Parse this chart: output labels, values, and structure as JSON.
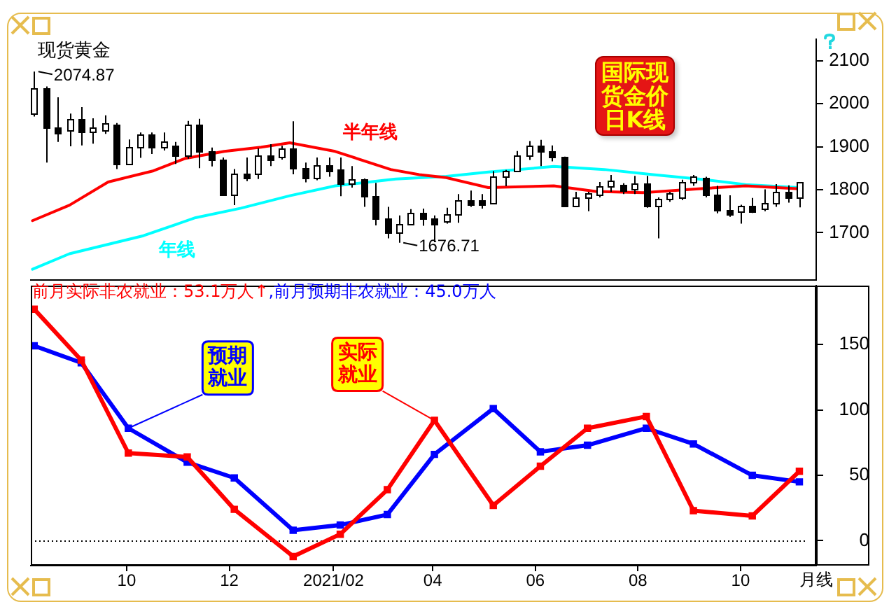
{
  "chart_data": [
    {
      "type": "candlestick",
      "title": "国际现货金价日K线",
      "subtitle": "现货黄金",
      "x": [
        "2020-08-07",
        "2020-08-14",
        "2020-08-21",
        "2020-08-28",
        "2020-09-04",
        "2020-09-11",
        "2020-09-18",
        "2020-09-25",
        "2020-10-02",
        "2020-10-09",
        "2020-10-16",
        "2020-10-23",
        "2020-10-30",
        "2020-11-06",
        "2020-11-13",
        "2020-11-20",
        "2020-11-27",
        "2020-12-04",
        "2020-12-11",
        "2020-12-18",
        "2020-12-25",
        "2021-01-01",
        "2021-01-08",
        "2021-01-15",
        "2021-01-22",
        "2021-01-29",
        "2021-02-05",
        "2021-02-12",
        "2021-02-19",
        "2021-02-26",
        "2021-03-05",
        "2021-03-12",
        "2021-03-19",
        "2021-03-26",
        "2021-04-02",
        "2021-04-09",
        "2021-04-16",
        "2021-04-23",
        "2021-04-30",
        "2021-05-07",
        "2021-05-14",
        "2021-05-21",
        "2021-05-28",
        "2021-06-04",
        "2021-06-11",
        "2021-06-18",
        "2021-06-25",
        "2021-07-02",
        "2021-07-09",
        "2021-07-16",
        "2021-07-23",
        "2021-07-30",
        "2021-08-06",
        "2021-08-13",
        "2021-08-20",
        "2021-08-27",
        "2021-09-03",
        "2021-09-10",
        "2021-09-17",
        "2021-09-24",
        "2021-10-01",
        "2021-10-08",
        "2021-10-15",
        "2021-10-22",
        "2021-10-29",
        "2021-11-05"
      ],
      "ohlc": [
        [
          1976,
          2074.87,
          1970,
          2035
        ],
        [
          2035,
          2040,
          1863,
          1944
        ],
        [
          1944,
          2015,
          1911,
          1932
        ],
        [
          1940,
          1977,
          1901,
          1964
        ],
        [
          1964,
          1992,
          1903,
          1934
        ],
        [
          1934,
          1966,
          1907,
          1946
        ],
        [
          1940,
          1973,
          1930,
          1954
        ],
        [
          1950,
          1955,
          1848,
          1861
        ],
        [
          1861,
          1917,
          1860,
          1899
        ],
        [
          1899,
          1933,
          1874,
          1930
        ],
        [
          1930,
          1933,
          1883,
          1899
        ],
        [
          1899,
          1933,
          1891,
          1911
        ],
        [
          1902,
          1911,
          1860,
          1879
        ],
        [
          1879,
          1960,
          1872,
          1951
        ],
        [
          1951,
          1965,
          1850,
          1889
        ],
        [
          1889,
          1898,
          1854,
          1871
        ],
        [
          1871,
          1875,
          1787,
          1788
        ],
        [
          1788,
          1848,
          1764,
          1839
        ],
        [
          1839,
          1875,
          1820,
          1827
        ],
        [
          1839,
          1896,
          1825,
          1881
        ],
        [
          1881,
          1906,
          1855,
          1869
        ],
        [
          1877,
          1902,
          1870,
          1895
        ],
        [
          1895,
          1959,
          1836,
          1850
        ],
        [
          1850,
          1863,
          1817,
          1828
        ],
        [
          1828,
          1875,
          1822,
          1856
        ],
        [
          1856,
          1875,
          1830,
          1844
        ],
        [
          1848,
          1875,
          1785,
          1814
        ],
        [
          1814,
          1855,
          1805,
          1826
        ],
        [
          1823,
          1826,
          1760,
          1784
        ],
        [
          1784,
          1816,
          1717,
          1734
        ],
        [
          1734,
          1760,
          1687,
          1700
        ],
        [
          1700,
          1740,
          1676.71,
          1720
        ],
        [
          1720,
          1755,
          1718,
          1745
        ],
        [
          1745,
          1756,
          1716,
          1732
        ],
        [
          1732,
          1740,
          1678,
          1720
        ],
        [
          1728,
          1758,
          1721,
          1744
        ],
        [
          1744,
          1790,
          1723,
          1777
        ],
        [
          1777,
          1798,
          1760,
          1766
        ],
        [
          1777,
          1790,
          1756,
          1765
        ],
        [
          1769,
          1843,
          1768,
          1831
        ],
        [
          1831,
          1846,
          1808,
          1844
        ],
        [
          1844,
          1890,
          1843,
          1881
        ],
        [
          1881,
          1913,
          1869,
          1903
        ],
        [
          1903,
          1916,
          1855,
          1891
        ],
        [
          1891,
          1903,
          1866,
          1877
        ],
        [
          1877,
          1877,
          1761,
          1764
        ],
        [
          1764,
          1795,
          1762,
          1781
        ],
        [
          1781,
          1795,
          1750,
          1792
        ],
        [
          1787,
          1818,
          1782,
          1808
        ],
        [
          1808,
          1834,
          1795,
          1820
        ],
        [
          1812,
          1815,
          1790,
          1800
        ],
        [
          1802,
          1832,
          1790,
          1814
        ],
        [
          1814,
          1832,
          1758,
          1763
        ],
        [
          1763,
          1782,
          1687,
          1780
        ],
        [
          1780,
          1795,
          1772,
          1792
        ],
        [
          1781,
          1823,
          1776,
          1818
        ],
        [
          1818,
          1834,
          1809,
          1831
        ],
        [
          1828,
          1830,
          1782,
          1787
        ],
        [
          1787,
          1809,
          1745,
          1754
        ],
        [
          1754,
          1787,
          1737,
          1742
        ],
        [
          1750,
          1765,
          1721,
          1761
        ],
        [
          1761,
          1781,
          1746,
          1749
        ],
        [
          1757,
          1801,
          1750,
          1768
        ],
        [
          1768,
          1813,
          1760,
          1796
        ],
        [
          1796,
          1810,
          1770,
          1783
        ],
        [
          1783,
          1818,
          1759,
          1818
        ]
      ],
      "colors": [
        "#ffffff",
        "#000000",
        "#000000",
        "#ffffff",
        "#000000",
        "#ffffff",
        "#ffffff",
        "#000000",
        "#ffffff",
        "#ffffff",
        "#000000",
        "#ffffff",
        "#000000",
        "#ffffff",
        "#000000",
        "#000000",
        "#000000",
        "#ffffff",
        "#000000",
        "#ffffff",
        "#000000",
        "#ffffff",
        "#000000",
        "#000000",
        "#ffffff",
        "#000000",
        "#000000",
        "#ffffff",
        "#000000",
        "#000000",
        "#000000",
        "#ffffff",
        "#ffffff",
        "#000000",
        "#000000",
        "#ffffff",
        "#ffffff",
        "#000000",
        "#000000",
        "#ffffff",
        "#ffffff",
        "#ffffff",
        "#ffffff",
        "#000000",
        "#000000",
        "#000000",
        "#ffffff",
        "#ffffff",
        "#ffffff",
        "#ffffff",
        "#000000",
        "#ffffff",
        "#000000",
        "#ffffff",
        "#ffffff",
        "#ffffff",
        "#ffffff",
        "#000000",
        "#000000",
        "#000000",
        "#ffffff",
        "#000000",
        "#ffffff",
        "#ffffff",
        "#000000",
        "#ffffff"
      ],
      "series": [
        {
          "name": "半年线",
          "type": "line",
          "color": "#ff0000",
          "x": [
            "2020-08-06",
            "2020-08-28",
            "2020-09-20",
            "2020-10-17",
            "2020-11-05",
            "2020-11-28",
            "2020-12-20",
            "2021-01-06",
            "2021-02-02",
            "2021-03-07",
            "2021-03-24",
            "2021-04-09",
            "2021-05-04",
            "2021-06-12",
            "2021-07-07",
            "2021-08-04",
            "2021-09-06",
            "2021-10-04",
            "2021-11-05"
          ],
          "values": [
            1728,
            1764,
            1818,
            1844,
            1873,
            1889,
            1899,
            1909,
            1889,
            1847,
            1835,
            1828,
            1805,
            1809,
            1796,
            1793,
            1802,
            1809,
            1802
          ]
        },
        {
          "name": "年线",
          "type": "line",
          "color": "#00ffff",
          "x": [
            "2020-08-06",
            "2020-08-28",
            "2020-10-11",
            "2020-11-11",
            "2020-12-08",
            "2021-01-06",
            "2021-02-02",
            "2021-03-10",
            "2021-04-09",
            "2021-05-04",
            "2021-06-12",
            "2021-07-12",
            "2021-08-10",
            "2021-09-06",
            "2021-10-04",
            "2021-11-05"
          ],
          "values": [
            1615,
            1651,
            1693,
            1735,
            1757,
            1786,
            1809,
            1825,
            1831,
            1841,
            1854,
            1847,
            1835,
            1825,
            1812,
            1805
          ]
        }
      ],
      "xlim": [
        "2020-08-05",
        "2021-11-15"
      ],
      "ylim": [
        1590,
        2150
      ],
      "yticks": [
        1700,
        1800,
        1900,
        2000,
        2100
      ],
      "tick_labels": "y",
      "annotations": [
        {
          "text": "2074.87",
          "x": "2020-08-07",
          "y": 2074.87
        },
        {
          "text": "1676.71",
          "x": "2021-03-12",
          "y": 1676.71
        }
      ]
    },
    {
      "type": "line",
      "x": [
        "2020-08-07",
        "2020-09-04",
        "2020-10-02",
        "2020-11-06",
        "2020-12-04",
        "2021-01-08",
        "2021-02-05",
        "2021-03-05",
        "2021-04-02",
        "2021-05-07",
        "2021-06-04",
        "2021-07-02",
        "2021-08-06",
        "2021-09-03",
        "2021-10-08",
        "2021-11-05"
      ],
      "series": [
        {
          "name": "实际就业",
          "color": "#ff0000",
          "values": [
            177,
            138,
            67,
            64,
            24,
            -12,
            5,
            39,
            92,
            27,
            57,
            86,
            95,
            23,
            19,
            53.1
          ]
        },
        {
          "name": "预期就业",
          "color": "#0000ff",
          "values": [
            149,
            136,
            86,
            60,
            48,
            8,
            12,
            20,
            66,
            101,
            68,
            73,
            86,
            74,
            50,
            45
          ]
        }
      ],
      "marker": "square",
      "xlim": [
        "2020-08-05",
        "2021-11-15"
      ],
      "xticks": [
        {
          "value": "2020-10-01",
          "label": "10"
        },
        {
          "value": "2020-12-01",
          "label": "12"
        },
        {
          "value": "2021-02-01",
          "label": "2021/02"
        },
        {
          "value": "2021-04-01",
          "label": "04"
        },
        {
          "value": "2021-06-01",
          "label": "06"
        },
        {
          "value": "2021-08-01",
          "label": "08"
        },
        {
          "value": "2021-10-01",
          "label": "10"
        }
      ],
      "xlabel": "月线",
      "ylim": [
        -19,
        195
      ],
      "yticks": [
        0,
        50,
        100,
        150
      ],
      "ref_lines": [
        {
          "axis": "y",
          "value": 0,
          "color": "#000000",
          "line_style": "dotted"
        }
      ],
      "annotations": [
        "前月实际非农就业：53.1万人↑",
        ",前月预期非农就业：45.0万人"
      ]
    }
  ]
}
